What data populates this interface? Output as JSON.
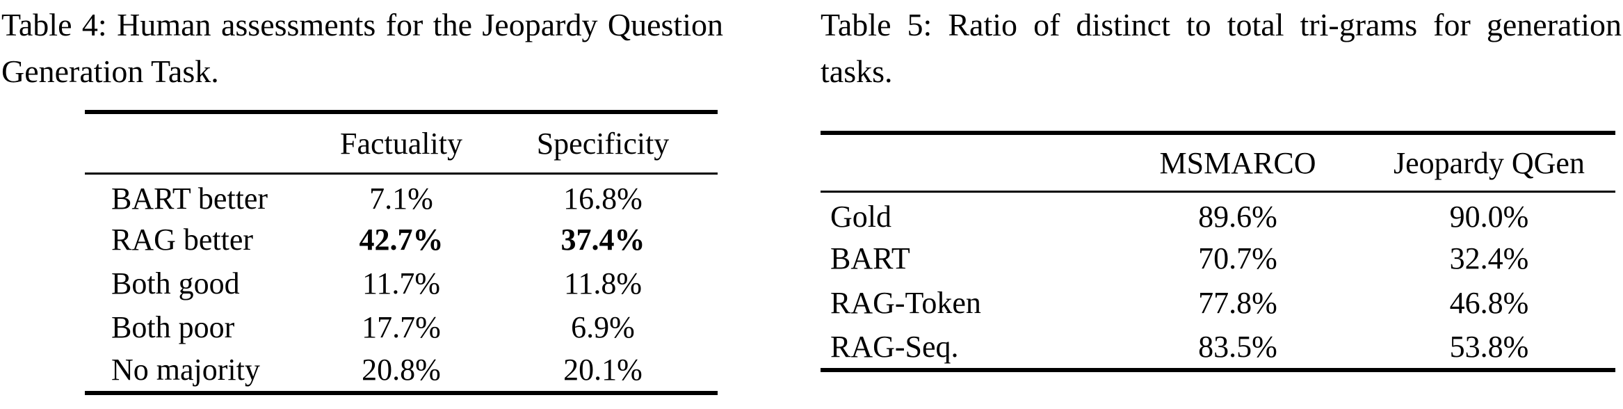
{
  "page": {
    "background_color": "#ffffff",
    "text_color": "#000000"
  },
  "table4": {
    "caption": "Table 4: Human assessments for the Jeopardy Question Generation Task.",
    "col_headers": {
      "factuality": "Factuality",
      "specificity": "Specificity"
    },
    "rows": [
      {
        "label": "BART better",
        "factuality": "7.1%",
        "specificity": "16.8%"
      },
      {
        "label": "RAG better",
        "factuality": "42.7%",
        "specificity": "37.4%"
      },
      {
        "label": "Both good",
        "factuality": "11.7%",
        "specificity": "11.8%"
      },
      {
        "label": "Both poor",
        "factuality": "17.7%",
        "specificity": "6.9%"
      },
      {
        "label": "No majority",
        "factuality": "20.8%",
        "specificity": "20.1%"
      }
    ],
    "bold_row_index": 1
  },
  "table5": {
    "caption": "Table 5: Ratio of distinct to total tri-grams for generation tasks.",
    "col_headers": {
      "msmarco": "MSMARCO",
      "jeopardy_qgen": "Jeopardy QGen"
    },
    "rows": [
      {
        "label": "Gold",
        "msmarco": "89.6%",
        "jeopardy_qgen": "90.0%"
      },
      {
        "label": "BART",
        "msmarco": "70.7%",
        "jeopardy_qgen": "32.4%"
      },
      {
        "label": "RAG-Token",
        "msmarco": "77.8%",
        "jeopardy_qgen": "46.8%"
      },
      {
        "label": "RAG-Seq.",
        "msmarco": "83.5%",
        "jeopardy_qgen": "53.8%"
      }
    ]
  }
}
